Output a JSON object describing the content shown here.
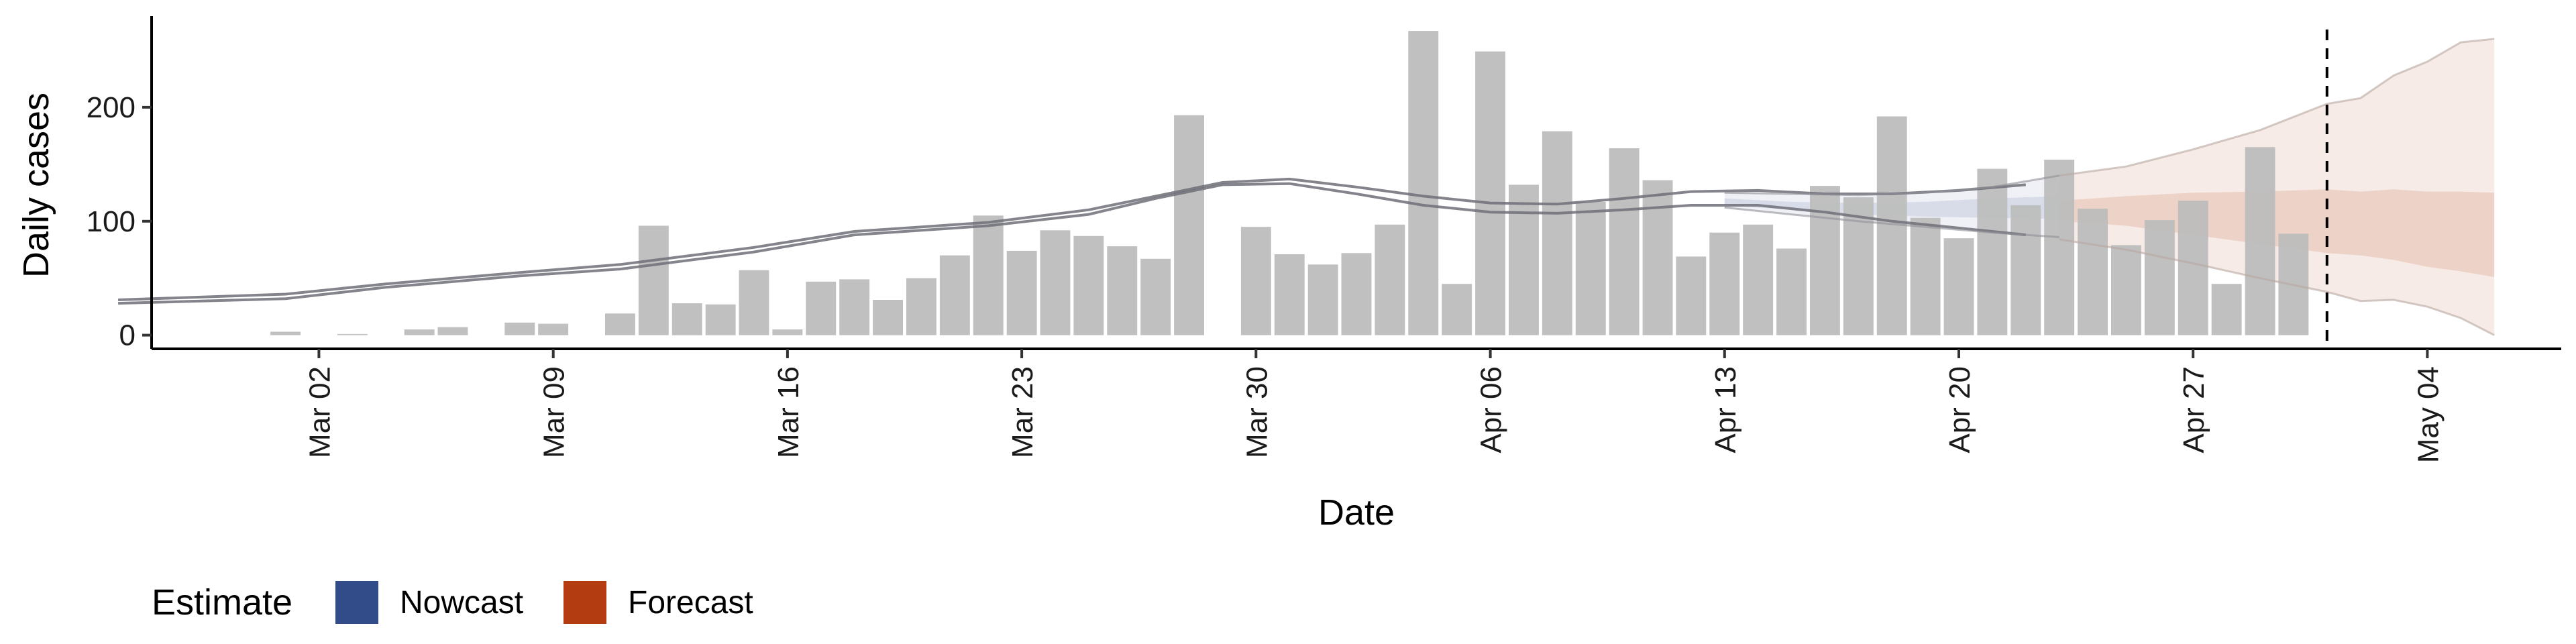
{
  "chart_data": {
    "type": "bar",
    "xlabel": "Date",
    "ylabel": "Daily cases",
    "xlim": [
      "2020-02-26",
      "2020-05-08"
    ],
    "ylim": [
      -12,
      280
    ],
    "x_ticks": [
      "2020-03-02",
      "2020-03-09",
      "2020-03-16",
      "2020-03-23",
      "2020-03-30",
      "2020-04-06",
      "2020-04-13",
      "2020-04-20",
      "2020-04-27",
      "2020-05-04"
    ],
    "x_tick_labels": [
      "Mar 02",
      "Mar 09",
      "Mar 16",
      "Mar 23",
      "Mar 30",
      "Apr 06",
      "Apr 13",
      "Apr 20",
      "Apr 27",
      "May 04"
    ],
    "y_ticks": [
      0,
      100,
      200
    ],
    "y_tick_labels": [
      "0",
      "100",
      "200"
    ],
    "grid": false,
    "bar_color": "#bdbdbd",
    "cases": {
      "dates": [
        "2020-03-01",
        "2020-03-02",
        "2020-03-03",
        "2020-03-04",
        "2020-03-05",
        "2020-03-06",
        "2020-03-07",
        "2020-03-08",
        "2020-03-09",
        "2020-03-10",
        "2020-03-11",
        "2020-03-12",
        "2020-03-13",
        "2020-03-14",
        "2020-03-15",
        "2020-03-16",
        "2020-03-17",
        "2020-03-18",
        "2020-03-19",
        "2020-03-20",
        "2020-03-21",
        "2020-03-22",
        "2020-03-23",
        "2020-03-24",
        "2020-03-25",
        "2020-03-26",
        "2020-03-27",
        "2020-03-28",
        "2020-03-29",
        "2020-03-30",
        "2020-03-31",
        "2020-04-01",
        "2020-04-02",
        "2020-04-03",
        "2020-04-04",
        "2020-04-05",
        "2020-04-06",
        "2020-04-07",
        "2020-04-08",
        "2020-04-09",
        "2020-04-10",
        "2020-04-11",
        "2020-04-12",
        "2020-04-13",
        "2020-04-14",
        "2020-04-15",
        "2020-04-16",
        "2020-04-17",
        "2020-04-18",
        "2020-04-19",
        "2020-04-20",
        "2020-04-21",
        "2020-04-22",
        "2020-04-23",
        "2020-04-24",
        "2020-04-25",
        "2020-04-26",
        "2020-04-27",
        "2020-04-28",
        "2020-04-29",
        "2020-04-30",
        "2020-05-01"
      ],
      "values": [
        3,
        0,
        1,
        0,
        5,
        7,
        0,
        11,
        10,
        0,
        19,
        96,
        28,
        27,
        57,
        5,
        47,
        49,
        31,
        50,
        70,
        105,
        74,
        92,
        87,
        78,
        67,
        193,
        0,
        95,
        71,
        62,
        72,
        97,
        267,
        45,
        249,
        132,
        179,
        117,
        164,
        136,
        69,
        90,
        97,
        76,
        131,
        121,
        192,
        103,
        85,
        146,
        114,
        154,
        111,
        79,
        101,
        118,
        45,
        165,
        89,
        0
      ]
    },
    "estimate_lines": {
      "dates": [
        "2020-02-25",
        "2020-03-01",
        "2020-03-04",
        "2020-03-08",
        "2020-03-11",
        "2020-03-15",
        "2020-03-18",
        "2020-03-22",
        "2020-03-25",
        "2020-03-27",
        "2020-03-29",
        "2020-03-31",
        "2020-04-02",
        "2020-04-04",
        "2020-04-06",
        "2020-04-08",
        "2020-04-10",
        "2020-04-12",
        "2020-04-14",
        "2020-04-16",
        "2020-04-18",
        "2020-04-20",
        "2020-04-22"
      ],
      "upper": [
        31,
        36,
        45,
        55,
        62,
        77,
        91,
        99,
        110,
        122,
        134,
        137,
        130,
        122,
        116,
        115,
        120,
        126,
        127,
        124,
        124,
        127,
        132
      ],
      "lower": [
        28,
        32,
        42,
        52,
        58,
        73,
        88,
        96,
        106,
        120,
        132,
        133,
        124,
        114,
        108,
        107,
        110,
        114,
        114,
        108,
        100,
        94,
        88
      ]
    },
    "nowcast": {
      "name": "Nowcast",
      "color": "#324b89",
      "dates": [
        "2020-04-13",
        "2020-04-15",
        "2020-04-17",
        "2020-04-19",
        "2020-04-21",
        "2020-04-23"
      ],
      "upper": [
        125,
        124,
        123,
        125,
        130,
        140
      ],
      "inner_upper": [
        120,
        117,
        116,
        117,
        120,
        122
      ],
      "inner_lower": [
        114,
        110,
        106,
        104,
        103,
        102
      ],
      "lower": [
        112,
        106,
        100,
        95,
        90,
        86
      ]
    },
    "forecast": {
      "name": "Forecast",
      "color": "#b33d10",
      "dates": [
        "2020-04-23",
        "2020-04-25",
        "2020-04-27",
        "2020-04-29",
        "2020-05-01",
        "2020-05-02",
        "2020-05-03",
        "2020-05-04",
        "2020-05-05",
        "2020-05-06"
      ],
      "upper": [
        140,
        148,
        163,
        180,
        203,
        208,
        228,
        240,
        257,
        260
      ],
      "inner_upper": [
        118,
        122,
        125,
        126,
        128,
        126,
        128,
        126,
        126,
        125
      ],
      "inner_lower": [
        100,
        96,
        88,
        80,
        72,
        70,
        66,
        60,
        56,
        51
      ],
      "lower": [
        84,
        75,
        63,
        50,
        38,
        30,
        31,
        25,
        15,
        0
      ]
    },
    "vline_date": "2020-05-01",
    "legend": {
      "title": "Estimate",
      "position": "bottom-left",
      "entries": [
        {
          "label": "Nowcast",
          "color": "#324b89"
        },
        {
          "label": "Forecast",
          "color": "#b33d10"
        }
      ]
    }
  }
}
